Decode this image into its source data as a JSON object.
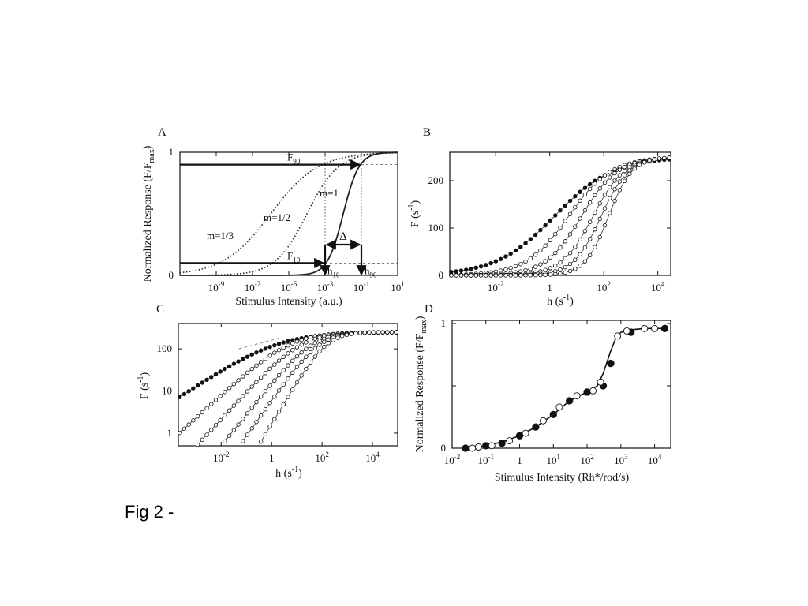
{
  "caption": "Fig 2 -",
  "chart_data": [
    {
      "panel": "A",
      "type": "line",
      "xlabel": "Stimulus Intensity (a.u.)",
      "ylabel": "Normalized Response (F/F",
      "ylabel_sub": "max",
      "ylabel_end": ")",
      "xscale": "log",
      "xlim": [
        1e-11,
        10
      ],
      "ylim": [
        0,
        1
      ],
      "x_ticks": [
        1e-09,
        1e-07,
        1e-05,
        0.001,
        0.1,
        10
      ],
      "x_tick_labels": [
        {
          "base": "10",
          "exp": "-9"
        },
        {
          "base": "10",
          "exp": "-7"
        },
        {
          "base": "10",
          "exp": "-5"
        },
        {
          "base": "10",
          "exp": "-3"
        },
        {
          "base": "10",
          "exp": "-1"
        },
        {
          "base": "10",
          "exp": "1"
        }
      ],
      "y_ticks": [
        0,
        1
      ],
      "y_tick_labels": [
        "0",
        "1"
      ],
      "grid": false,
      "series": [
        {
          "name": "m=1",
          "style": "solid",
          "m": 1,
          "ec50": 0.01
        },
        {
          "name": "m=1/2",
          "style": "dotted",
          "m": 0.5,
          "ec50": 0.0001
        },
        {
          "name": "m=1/3",
          "style": "dotted",
          "m": 0.3333,
          "ec50": 1e-06
        }
      ],
      "annotations": {
        "F90": {
          "base": "F",
          "sub": "90",
          "y": 0.9
        },
        "F10": {
          "base": "F",
          "sub": "10",
          "y": 0.1
        },
        "h10": {
          "base": "h",
          "sub": "10",
          "x": 0.001
        },
        "h90": {
          "base": "h",
          "sub": "90",
          "x": 0.1
        },
        "delta": "Δ"
      }
    },
    {
      "panel": "B",
      "type": "scatter",
      "xlabel": "h (s",
      "xlabel_sup": "-1",
      "xlabel_end": ")",
      "ylabel": "F (s",
      "ylabel_sup": "-1",
      "ylabel_end": ")",
      "xscale": "log",
      "xlim": [
        0.0002,
        30000
      ],
      "ylim": [
        0,
        260
      ],
      "x_ticks": [
        0.01,
        1,
        100,
        10000
      ],
      "x_tick_labels": [
        {
          "base": "10",
          "exp": "-2"
        },
        {
          "base": "1",
          "exp": ""
        },
        {
          "base": "10",
          "exp": "2"
        },
        {
          "base": "10",
          "exp": "4"
        }
      ],
      "y_ticks": [
        0,
        100,
        200
      ],
      "y_tick_labels": [
        "0",
        "100",
        "200"
      ],
      "grid": false,
      "fmax": 250,
      "series": [
        {
          "marker": "filled",
          "m": 0.4,
          "ec50": 1.5
        },
        {
          "marker": "open",
          "m": 0.55,
          "ec50": 5
        },
        {
          "marker": "open",
          "m": 0.65,
          "ec50": 15
        },
        {
          "marker": "open",
          "m": 0.75,
          "ec50": 40
        },
        {
          "marker": "open",
          "m": 0.85,
          "ec50": 80
        },
        {
          "marker": "open",
          "m": 1.0,
          "ec50": 150
        }
      ]
    },
    {
      "panel": "C",
      "type": "scatter",
      "xlabel": "h (s",
      "xlabel_sup": "-1",
      "xlabel_end": ")",
      "ylabel": "F (s",
      "ylabel_sup": "-1",
      "ylabel_end": ")",
      "xscale": "log",
      "yscale": "log",
      "xlim": [
        0.0002,
        100000
      ],
      "ylim": [
        0.5,
        400
      ],
      "x_ticks": [
        0.01,
        1,
        100,
        10000
      ],
      "x_tick_labels": [
        {
          "base": "10",
          "exp": "-2"
        },
        {
          "base": "1",
          "exp": ""
        },
        {
          "base": "10",
          "exp": "2"
        },
        {
          "base": "10",
          "exp": "4"
        }
      ],
      "y_ticks": [
        1,
        10,
        100
      ],
      "y_tick_labels": [
        "1",
        "10",
        "100"
      ],
      "grid": false,
      "fmax": 250,
      "reference_line": {
        "style": "dashed",
        "x": [
          0.05,
          2
        ],
        "y": [
          100,
          180
        ]
      },
      "series": [
        {
          "marker": "filled",
          "m": 0.4,
          "ec50": 1.5
        },
        {
          "marker": "open",
          "m": 0.55,
          "ec50": 5
        },
        {
          "marker": "open",
          "m": 0.65,
          "ec50": 15
        },
        {
          "marker": "open",
          "m": 0.75,
          "ec50": 40
        },
        {
          "marker": "open",
          "m": 0.85,
          "ec50": 80
        },
        {
          "marker": "open",
          "m": 1.0,
          "ec50": 150
        }
      ]
    },
    {
      "panel": "D",
      "type": "scatter",
      "xlabel": "Stimulus Intensity (Rh*/rod/s)",
      "ylabel": "Normalized Response (F/F",
      "ylabel_sub": "max",
      "ylabel_end": ")",
      "xscale": "log",
      "xlim": [
        0.01,
        30000
      ],
      "ylim": [
        0,
        1
      ],
      "x_ticks": [
        0.01,
        0.1,
        1,
        10,
        100,
        1000,
        10000
      ],
      "x_tick_labels": [
        {
          "base": "10",
          "exp": "-2"
        },
        {
          "base": "10",
          "exp": "-1"
        },
        {
          "base": "1",
          "exp": ""
        },
        {
          "base": "10",
          "exp": "1"
        },
        {
          "base": "10",
          "exp": "2"
        },
        {
          "base": "10",
          "exp": "3"
        },
        {
          "base": "10",
          "exp": "4"
        }
      ],
      "y_ticks": [
        0,
        0.5,
        1
      ],
      "y_tick_labels": [
        "0",
        "",
        "1"
      ],
      "grid": false,
      "fit_line": {
        "x": [
          0.02,
          0.05,
          0.1,
          0.3,
          1,
          3,
          10,
          30,
          100,
          200,
          300,
          500,
          700,
          1000,
          2000,
          5000,
          10000,
          20000
        ],
        "y": [
          0.0,
          0.01,
          0.02,
          0.05,
          0.1,
          0.17,
          0.27,
          0.38,
          0.45,
          0.5,
          0.6,
          0.78,
          0.88,
          0.93,
          0.95,
          0.96,
          0.96,
          0.96
        ]
      },
      "series": [
        {
          "marker": "filled",
          "x": [
            0.025,
            0.1,
            0.3,
            1,
            3,
            10,
            30,
            100,
            300,
            500,
            2000,
            20000
          ],
          "y": [
            0.0,
            0.02,
            0.04,
            0.1,
            0.17,
            0.27,
            0.38,
            0.45,
            0.5,
            0.68,
            0.93,
            0.96
          ]
        },
        {
          "marker": "open",
          "x": [
            0.04,
            0.06,
            0.15,
            0.5,
            1.5,
            5,
            15,
            50,
            150,
            250,
            800,
            1500,
            5000,
            10000
          ],
          "y": [
            0.0,
            0.01,
            0.02,
            0.06,
            0.12,
            0.22,
            0.33,
            0.42,
            0.46,
            0.53,
            0.9,
            0.94,
            0.96,
            0.96
          ]
        }
      ]
    }
  ],
  "panel_labels": [
    "A",
    "B",
    "C",
    "D"
  ],
  "panel_A_curve_labels": [
    "m=1/3",
    "m=1/2",
    "m=1"
  ]
}
